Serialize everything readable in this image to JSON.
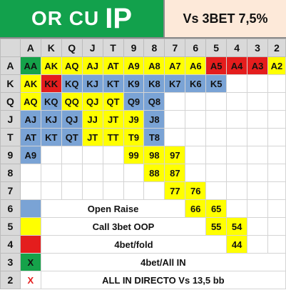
{
  "header": {
    "title_small": "OR CU",
    "title_big": "IP",
    "subtitle": "Vs 3BET 7,5%"
  },
  "columns": [
    "A",
    "K",
    "Q",
    "J",
    "T",
    "9",
    "8",
    "7",
    "6",
    "5",
    "4",
    "3",
    "2"
  ],
  "rows": [
    {
      "label": "A",
      "cells": [
        [
          "AA",
          "g",
          ""
        ],
        [
          "AK",
          "y",
          "red"
        ],
        [
          "AQ",
          "y",
          ""
        ],
        [
          "AJ",
          "y",
          ""
        ],
        [
          "AT",
          "y",
          ""
        ],
        [
          "A9",
          "y",
          ""
        ],
        [
          "A8",
          "y",
          ""
        ],
        [
          "A7",
          "y",
          ""
        ],
        [
          "A6",
          "y",
          ""
        ],
        [
          "A5",
          "r",
          ""
        ],
        [
          "A4",
          "r",
          ""
        ],
        [
          "A3",
          "r",
          ""
        ],
        [
          "A2",
          "y",
          ""
        ]
      ]
    },
    {
      "label": "K",
      "cells": [
        [
          "AK",
          "y",
          "red"
        ],
        [
          "KK",
          "r",
          ""
        ],
        [
          "KQ",
          "b",
          ""
        ],
        [
          "KJ",
          "b",
          ""
        ],
        [
          "KT",
          "b",
          ""
        ],
        [
          "K9",
          "b",
          ""
        ],
        [
          "K8",
          "b",
          ""
        ],
        [
          "K7",
          "b",
          ""
        ],
        [
          "K6",
          "b",
          ""
        ],
        [
          "K5",
          "b",
          ""
        ],
        [
          "",
          "",
          ""
        ],
        [
          "",
          "",
          ""
        ],
        [
          "",
          "",
          ""
        ]
      ]
    },
    {
      "label": "Q",
      "cells": [
        [
          "AQ",
          "y",
          ""
        ],
        [
          "KQ",
          "b",
          ""
        ],
        [
          "QQ",
          "y",
          ""
        ],
        [
          "QJ",
          "y",
          ""
        ],
        [
          "QT",
          "y",
          ""
        ],
        [
          "Q9",
          "b",
          ""
        ],
        [
          "Q8",
          "b",
          ""
        ],
        [
          "",
          "",
          ""
        ],
        [
          "",
          "",
          ""
        ],
        [
          "",
          "",
          ""
        ],
        [
          "",
          "",
          ""
        ],
        [
          "",
          "",
          ""
        ],
        [
          "",
          "",
          ""
        ]
      ]
    },
    {
      "label": "J",
      "cells": [
        [
          "AJ",
          "b",
          ""
        ],
        [
          "KJ",
          "b",
          ""
        ],
        [
          "QJ",
          "b",
          ""
        ],
        [
          "JJ",
          "y",
          ""
        ],
        [
          "JT",
          "y",
          ""
        ],
        [
          "J9",
          "y",
          ""
        ],
        [
          "J8",
          "b",
          ""
        ],
        [
          "",
          "",
          ""
        ],
        [
          "",
          "",
          ""
        ],
        [
          "",
          "",
          ""
        ],
        [
          "",
          "",
          ""
        ],
        [
          "",
          "",
          ""
        ],
        [
          "",
          "",
          ""
        ]
      ]
    },
    {
      "label": "T",
      "cells": [
        [
          "AT",
          "b",
          ""
        ],
        [
          "KT",
          "b",
          ""
        ],
        [
          "QT",
          "b",
          ""
        ],
        [
          "JT",
          "y",
          ""
        ],
        [
          "TT",
          "y",
          ""
        ],
        [
          "T9",
          "y",
          ""
        ],
        [
          "T8",
          "b",
          ""
        ],
        [
          "",
          "",
          ""
        ],
        [
          "",
          "",
          ""
        ],
        [
          "",
          "",
          ""
        ],
        [
          "",
          "",
          ""
        ],
        [
          "",
          "",
          ""
        ],
        [
          "",
          "",
          ""
        ]
      ]
    },
    {
      "label": "9",
      "cells": [
        [
          "A9",
          "b",
          ""
        ],
        [
          "",
          "",
          ""
        ],
        [
          "",
          "",
          ""
        ],
        [
          "",
          "",
          ""
        ],
        [
          "",
          "",
          ""
        ],
        [
          "99",
          "y",
          ""
        ],
        [
          "98",
          "y",
          ""
        ],
        [
          "97",
          "y",
          ""
        ],
        [
          "",
          "",
          ""
        ],
        [
          "",
          "",
          ""
        ],
        [
          "",
          "",
          ""
        ],
        [
          "",
          "",
          ""
        ],
        [
          "",
          "",
          ""
        ]
      ]
    },
    {
      "label": "8",
      "cells": [
        [
          "",
          "",
          ""
        ],
        [
          "",
          "",
          ""
        ],
        [
          "",
          "",
          ""
        ],
        [
          "",
          "",
          ""
        ],
        [
          "",
          "",
          ""
        ],
        [
          "",
          "",
          ""
        ],
        [
          "88",
          "y",
          ""
        ],
        [
          "87",
          "y",
          ""
        ],
        [
          "",
          "",
          ""
        ],
        [
          "",
          "",
          ""
        ],
        [
          "",
          "",
          ""
        ],
        [
          "",
          "",
          ""
        ],
        [
          "",
          "",
          ""
        ]
      ]
    },
    {
      "label": "7",
      "cells": [
        [
          "",
          "",
          ""
        ],
        [
          "",
          "",
          ""
        ],
        [
          "",
          "",
          ""
        ],
        [
          "",
          "",
          ""
        ],
        [
          "",
          "",
          ""
        ],
        [
          "",
          "",
          ""
        ],
        [
          "",
          "",
          ""
        ],
        [
          "77",
          "y",
          ""
        ],
        [
          "76",
          "y",
          ""
        ],
        [
          "",
          "",
          ""
        ],
        [
          "",
          "",
          ""
        ],
        [
          "",
          "",
          ""
        ],
        [
          "",
          "",
          ""
        ]
      ]
    },
    {
      "label": "6",
      "cells": [
        [
          "",
          "",
          ""
        ],
        [
          "",
          "",
          ""
        ],
        [
          "",
          "",
          ""
        ],
        [
          "",
          "",
          ""
        ],
        [
          "",
          "",
          ""
        ],
        [
          "",
          "",
          ""
        ],
        [
          "",
          "",
          ""
        ],
        [
          "",
          "",
          ""
        ],
        [
          "66",
          "y",
          ""
        ],
        [
          "65",
          "y",
          ""
        ],
        [
          "",
          "",
          ""
        ],
        [
          "",
          "",
          ""
        ],
        [
          "",
          "",
          ""
        ]
      ]
    },
    {
      "label": "5",
      "cells": [
        [
          "",
          "",
          ""
        ],
        [
          "",
          "",
          ""
        ],
        [
          "",
          "",
          ""
        ],
        [
          "",
          "",
          ""
        ],
        [
          "",
          "",
          ""
        ],
        [
          "",
          "",
          ""
        ],
        [
          "",
          "",
          ""
        ],
        [
          "",
          "",
          ""
        ],
        [
          "",
          "",
          ""
        ],
        [
          "55",
          "y",
          ""
        ],
        [
          "54",
          "y",
          ""
        ],
        [
          "",
          "",
          ""
        ],
        [
          "",
          "",
          ""
        ]
      ]
    },
    {
      "label": "4",
      "cells": [
        [
          "",
          "",
          ""
        ],
        [
          "",
          "",
          ""
        ],
        [
          "",
          "",
          ""
        ],
        [
          "",
          "",
          ""
        ],
        [
          "",
          "",
          ""
        ],
        [
          "",
          "",
          ""
        ],
        [
          "",
          "",
          ""
        ],
        [
          "",
          "",
          ""
        ],
        [
          "",
          "",
          ""
        ],
        [
          "",
          "",
          ""
        ],
        [
          "44",
          "y",
          ""
        ],
        [
          "",
          "",
          ""
        ],
        [
          "",
          "",
          ""
        ]
      ]
    },
    {
      "label": "3",
      "cells": []
    },
    {
      "label": "2",
      "cells": []
    }
  ],
  "legend": [
    {
      "row": "6",
      "swatch": "b",
      "text": "Open Raise",
      "style": "bold"
    },
    {
      "row": "5",
      "swatch": "y",
      "text": "Call 3bet OOP",
      "style": "normal"
    },
    {
      "row": "4",
      "swatch": "r",
      "text": "4bet/fold",
      "style": "normal"
    },
    {
      "row": "3",
      "swatch": "g",
      "mark": "X",
      "text": "4bet/All IN",
      "style": "normal"
    },
    {
      "row": "2",
      "swatch": "",
      "mark": "X",
      "text": "ALL IN DIRECTO Vs 13,5 bb",
      "style": "small"
    }
  ],
  "colors": {
    "open_raise": "#7aa3d5",
    "call": "#ffff00",
    "fourbet_fold": "#e41d1d",
    "fourbet_allin": "#15a24a",
    "header_green": "#12a14c",
    "header_peach": "#fde9d9",
    "red_text": "#e41d1d"
  }
}
